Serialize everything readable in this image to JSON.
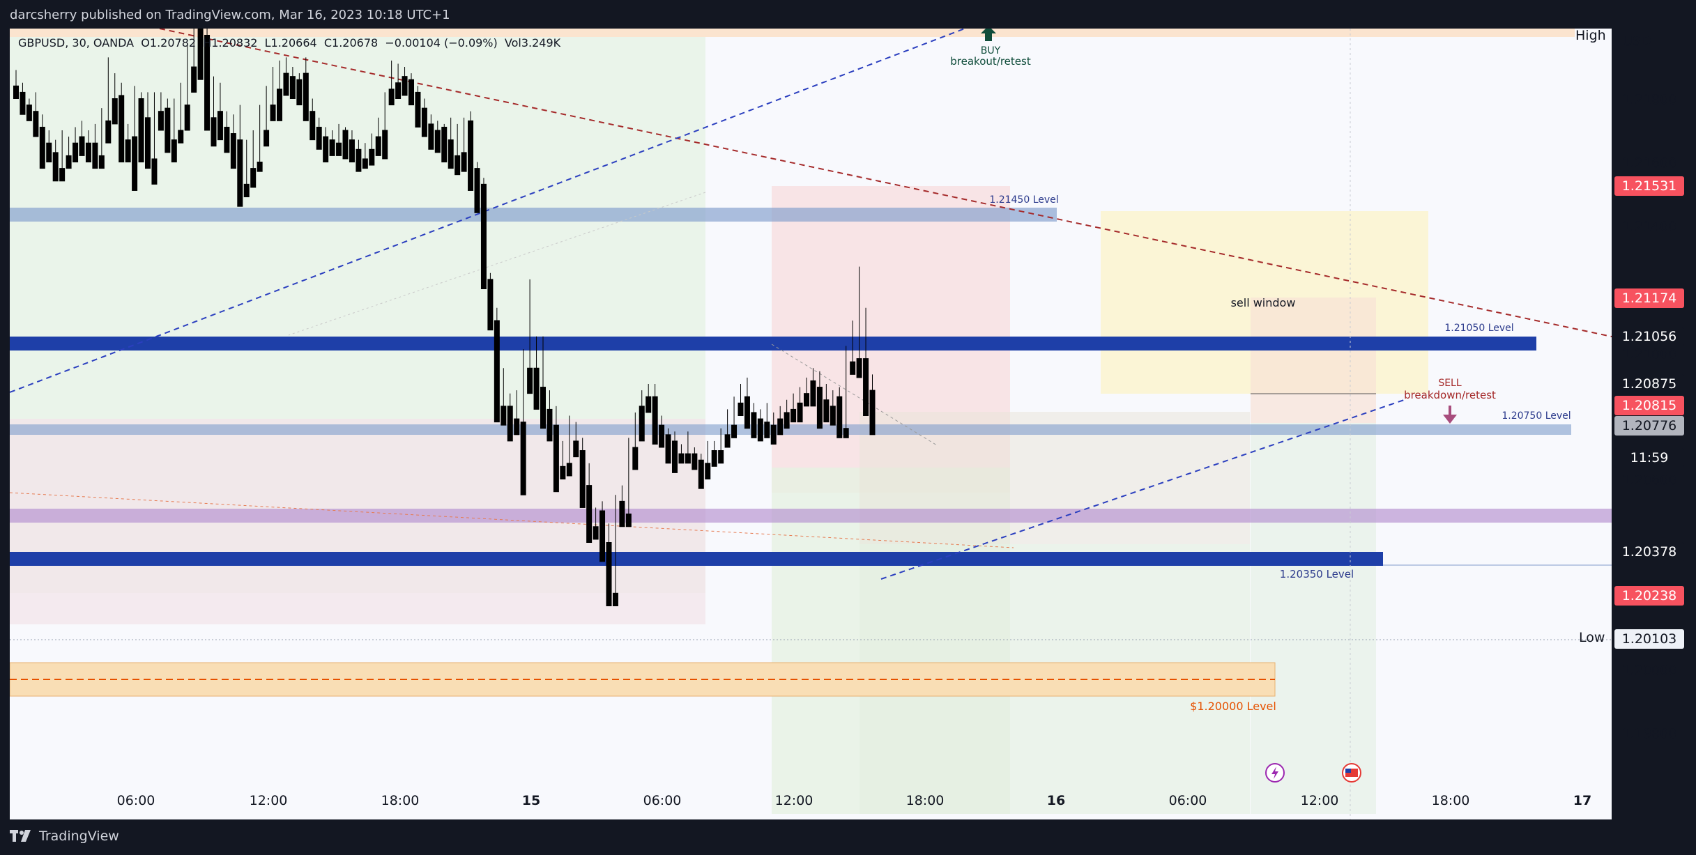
{
  "publish_line": "darcsherry published on TradingView.com, Mar 16, 2023 10:18 UTC+1",
  "legend": {
    "symbol": "GBPUSD, 30, OANDA",
    "open": "O1.20782",
    "high": "H1.20832",
    "low": "L1.20664",
    "close": "C1.20678",
    "change": "−0.00104 (−0.09%)",
    "volume": "Vol3.249K"
  },
  "currency": "USD",
  "high_label": "High",
  "low_label": "Low",
  "brand": "TradingView",
  "colors": {
    "bull": "#ffffff",
    "bear": "#000000",
    "level_blue": "#1e3fa8",
    "level_light": "#7f9ccc",
    "red_label": "#f7525f",
    "dark_label": "#131722",
    "orange": "#e65100",
    "purple_zone": "#b48fd0"
  },
  "price_axis": {
    "ticks": [
      "1.21800",
      "1.21600",
      "1.21400",
      "1.21000",
      "1.20600",
      "1.20000",
      "1.19800"
    ],
    "labels": [
      {
        "text": "1.21531",
        "style": "red"
      },
      {
        "text": "1.21174",
        "style": "red"
      },
      {
        "text": "1.21056",
        "style": "dark"
      },
      {
        "text": "1.20875",
        "style": "dark"
      },
      {
        "text": "1.20815",
        "style": "red"
      },
      {
        "text": "1.20776",
        "style": "gray"
      },
      {
        "text": "11:59",
        "style": "dark"
      },
      {
        "text": "1.20378",
        "style": "dark"
      },
      {
        "text": "1.20238",
        "style": "red"
      },
      {
        "text": "1.20103",
        "style": "light"
      }
    ]
  },
  "time_axis": [
    "06:00",
    "12:00",
    "18:00",
    "15",
    "06:00",
    "12:00",
    "18:00",
    "16",
    "06:00",
    "12:00",
    "18:00",
    "17"
  ],
  "annotations": {
    "buy_title": "BUY",
    "buy_sub": "breakout/retest",
    "sell_title": "SELL",
    "sell_sub": "breakdown/retest",
    "sell_window": "sell window",
    "level_21450": "1.21450 Level",
    "level_21050": "1.21050 Level",
    "level_20750": "1.20750 Level",
    "level_20350": "1.20350 Level",
    "level_20000": "$1.20000 Level"
  },
  "candles": [
    [
      1.2174,
      1.2179,
      1.2171,
      1.217
    ],
    [
      1.2172,
      1.2175,
      1.2168,
      1.2165
    ],
    [
      1.2168,
      1.217,
      1.2165,
      1.2163
    ],
    [
      1.2166,
      1.2172,
      1.216,
      1.2158
    ],
    [
      1.2161,
      1.2165,
      1.215,
      1.2148
    ],
    [
      1.2156,
      1.216,
      1.2152,
      1.215
    ],
    [
      1.2153,
      1.2157,
      1.2145,
      1.2144
    ],
    [
      1.2148,
      1.216,
      1.2146,
      1.2144
    ],
    [
      1.2152,
      1.2158,
      1.215,
      1.2148
    ],
    [
      1.2156,
      1.2161,
      1.2154,
      1.215
    ],
    [
      1.2158,
      1.2163,
      1.2156,
      1.2152
    ],
    [
      1.2156,
      1.216,
      1.2153,
      1.215
    ],
    [
      1.2156,
      1.2162,
      1.215,
      1.2148
    ],
    [
      1.2152,
      1.2167,
      1.215,
      1.2148
    ],
    [
      1.2163,
      1.2183,
      1.2162,
      1.2156
    ],
    [
      1.217,
      1.2178,
      1.2165,
      1.2162
    ],
    [
      1.2171,
      1.2175,
      1.2155,
      1.215
    ],
    [
      1.2157,
      1.2162,
      1.2154,
      1.215
    ],
    [
      1.2158,
      1.2174,
      1.2158,
      1.2141
    ],
    [
      1.217,
      1.2172,
      1.2153,
      1.215
    ],
    [
      1.2164,
      1.2172,
      1.215,
      1.2148
    ],
    [
      1.2151,
      1.2172,
      1.215,
      1.2143
    ],
    [
      1.2166,
      1.2172,
      1.2163,
      1.216
    ],
    [
      1.2167,
      1.217,
      1.2155,
      1.2153
    ],
    [
      1.2157,
      1.217,
      1.2155,
      1.215
    ],
    [
      1.216,
      1.2175,
      1.2158,
      1.2156
    ],
    [
      1.2168,
      1.2187,
      1.2165,
      1.216
    ],
    [
      1.218,
      1.2193,
      1.2178,
      1.2172
    ],
    [
      1.2192,
      1.2205,
      1.2191,
      1.2176
    ],
    [
      1.219,
      1.2194,
      1.2164,
      1.216
    ],
    [
      1.2164,
      1.2177,
      1.2158,
      1.2155
    ],
    [
      1.2166,
      1.2175,
      1.2159,
      1.2157
    ],
    [
      1.2161,
      1.2166,
      1.2156,
      1.2153
    ],
    [
      1.2159,
      1.2165,
      1.2154,
      1.2148
    ],
    [
      1.2157,
      1.2168,
      1.214,
      1.2136
    ],
    [
      1.2143,
      1.2157,
      1.2143,
      1.2139
    ],
    [
      1.2148,
      1.216,
      1.2147,
      1.2142
    ],
    [
      1.215,
      1.2168,
      1.2149,
      1.2147
    ],
    [
      1.216,
      1.2174,
      1.2158,
      1.2155
    ],
    [
      1.2168,
      1.218,
      1.2167,
      1.2163
    ],
    [
      1.2173,
      1.2182,
      1.2166,
      1.2163
    ],
    [
      1.2178,
      1.2183,
      1.2174,
      1.2171
    ],
    [
      1.2177,
      1.218,
      1.2173,
      1.217
    ],
    [
      1.2176,
      1.2178,
      1.2173,
      1.2168
    ],
    [
      1.2178,
      1.2183,
      1.2165,
      1.2163
    ],
    [
      1.2166,
      1.217,
      1.216,
      1.2157
    ],
    [
      1.2161,
      1.2164,
      1.2157,
      1.2154
    ],
    [
      1.2158,
      1.2161,
      1.2154,
      1.215
    ],
    [
      1.2157,
      1.216,
      1.2154,
      1.2152
    ],
    [
      1.2156,
      1.2162,
      1.2155,
      1.2152
    ],
    [
      1.216,
      1.2161,
      1.2155,
      1.2151
    ],
    [
      1.2157,
      1.216,
      1.2153,
      1.215
    ],
    [
      1.2154,
      1.2157,
      1.2149,
      1.2147
    ],
    [
      1.2151,
      1.2156,
      1.2149,
      1.2148
    ],
    [
      1.2154,
      1.2159,
      1.2152,
      1.2149
    ],
    [
      1.2158,
      1.2164,
      1.2156,
      1.2152
    ],
    [
      1.216,
      1.2172,
      1.2153,
      1.2151
    ],
    [
      1.2173,
      1.2182,
      1.217,
      1.2168
    ],
    [
      1.2175,
      1.2181,
      1.2173,
      1.217
    ],
    [
      1.2177,
      1.218,
      1.2173,
      1.2171
    ],
    [
      1.2176,
      1.2178,
      1.217,
      1.2168
    ],
    [
      1.2172,
      1.2174,
      1.2164,
      1.2161
    ],
    [
      1.2167,
      1.217,
      1.2161,
      1.2158
    ],
    [
      1.2162,
      1.2165,
      1.2158,
      1.2154
    ],
    [
      1.216,
      1.2163,
      1.2156,
      1.2153
    ],
    [
      1.2161,
      1.2162,
      1.2155,
      1.215
    ],
    [
      1.2157,
      1.2164,
      1.2151,
      1.2148
    ],
    [
      1.2152,
      1.2162,
      1.215,
      1.2146
    ],
    [
      1.2153,
      1.2164,
      1.215,
      1.2147
    ],
    [
      1.2163,
      1.2166,
      1.2145,
      1.2141
    ],
    [
      1.2148,
      1.215,
      1.214,
      1.2134
    ],
    [
      1.2143,
      1.2145,
      1.2113,
      1.211
    ],
    [
      1.2113,
      1.2115,
      1.21,
      1.2097
    ],
    [
      1.21,
      1.2104,
      1.2072,
      1.2068
    ],
    [
      1.2073,
      1.2085,
      1.207,
      1.2067
    ],
    [
      1.2073,
      1.2077,
      1.2065,
      1.2062
    ],
    [
      1.2069,
      1.2078,
      1.2067,
      1.2064
    ],
    [
      1.2068,
      1.2091,
      1.2067,
      1.2045
    ],
    [
      1.2085,
      1.2113,
      1.208,
      1.2077
    ],
    [
      1.2085,
      1.2095,
      1.2075,
      1.2072
    ],
    [
      1.2079,
      1.2095,
      1.207,
      1.2066
    ],
    [
      1.2072,
      1.2078,
      1.2065,
      1.2062
    ],
    [
      1.2067,
      1.2073,
      1.2049,
      1.2046
    ],
    [
      1.2054,
      1.2062,
      1.2052,
      1.205
    ],
    [
      1.2055,
      1.207,
      1.2054,
      1.2051
    ],
    [
      1.2062,
      1.2068,
      1.2059,
      1.2057
    ],
    [
      1.2059,
      1.2063,
      1.2044,
      1.2041
    ],
    [
      1.2048,
      1.2055,
      1.2034,
      1.203
    ],
    [
      1.2035,
      1.2041,
      1.2034,
      1.2031
    ],
    [
      1.204,
      1.2043,
      1.2027,
      1.2024
    ],
    [
      1.203,
      1.2036,
      1.2012,
      1.201
    ],
    [
      1.2014,
      1.2045,
      1.2013,
      1.201
    ],
    [
      1.2043,
      1.2048,
      1.2038,
      1.2035
    ],
    [
      1.2039,
      1.2063,
      1.2038,
      1.2035
    ],
    [
      1.206,
      1.2071,
      1.2059,
      1.2053
    ],
    [
      1.2073,
      1.2078,
      1.2065,
      1.2062
    ],
    [
      1.2076,
      1.208,
      1.2074,
      1.2071
    ],
    [
      1.2076,
      1.208,
      1.2064,
      1.2061
    ],
    [
      1.2067,
      1.207,
      1.2062,
      1.206
    ],
    [
      1.2064,
      1.2066,
      1.2058,
      1.2055
    ],
    [
      1.2062,
      1.2065,
      1.2058,
      1.2052
    ],
    [
      1.2058,
      1.2061,
      1.2057,
      1.2055
    ],
    [
      1.2058,
      1.2065,
      1.2057,
      1.2055
    ],
    [
      1.2058,
      1.206,
      1.2055,
      1.2053
    ],
    [
      1.2056,
      1.2058,
      1.2053,
      1.2047
    ],
    [
      1.2055,
      1.2062,
      1.2053,
      1.205
    ],
    [
      1.2059,
      1.2062,
      1.2057,
      1.2054
    ],
    [
      1.2059,
      1.2066,
      1.2058,
      1.2055
    ],
    [
      1.2064,
      1.2072,
      1.2062,
      1.206
    ],
    [
      1.2067,
      1.2076,
      1.2066,
      1.2063
    ],
    [
      1.2074,
      1.208,
      1.2073,
      1.207
    ],
    [
      1.2076,
      1.2082,
      1.2069,
      1.2066
    ],
    [
      1.2071,
      1.2074,
      1.2066,
      1.2063
    ],
    [
      1.2069,
      1.2072,
      1.2065,
      1.2062
    ],
    [
      1.2068,
      1.2074,
      1.2066,
      1.2063
    ],
    [
      1.2067,
      1.2071,
      1.2065,
      1.2061
    ],
    [
      1.2069,
      1.2073,
      1.2067,
      1.2064
    ],
    [
      1.2071,
      1.2075,
      1.2069,
      1.2066
    ],
    [
      1.2072,
      1.2077,
      1.2071,
      1.2068
    ],
    [
      1.2074,
      1.2079,
      1.2071,
      1.2068
    ],
    [
      1.2077,
      1.2082,
      1.2076,
      1.2073
    ],
    [
      1.2081,
      1.2085,
      1.2076,
      1.2073
    ],
    [
      1.2079,
      1.2084,
      1.2069,
      1.2066
    ],
    [
      1.2075,
      1.208,
      1.2071,
      1.2068
    ],
    [
      1.2073,
      1.2078,
      1.207,
      1.2067
    ],
    [
      1.2076,
      1.2079,
      1.2065,
      1.2063
    ],
    [
      1.2066,
      1.2092,
      1.2065,
      1.2063
    ],
    [
      1.2087,
      1.21,
      1.2086,
      1.2083
    ],
    [
      1.2088,
      1.2117,
      1.2085,
      1.2082
    ],
    [
      1.2088,
      1.2104,
      1.2074,
      1.207
    ],
    [
      1.2078,
      1.2083,
      1.2067,
      1.2064
    ]
  ]
}
